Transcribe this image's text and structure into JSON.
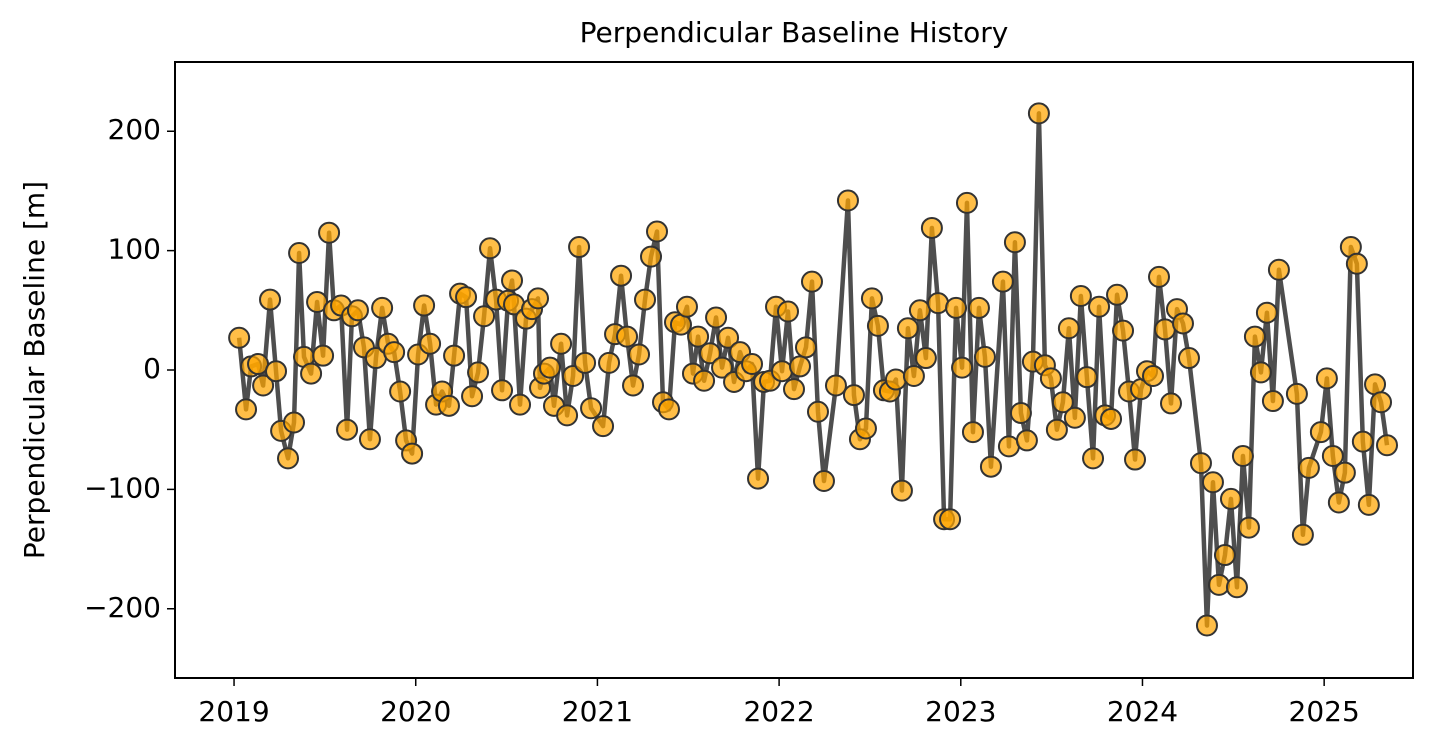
{
  "chart_data": {
    "type": "line",
    "title": "Perpendicular Baseline History",
    "y_label": "Perpendicular Baseline [m]",
    "x": [
      2019.028,
      2019.066,
      2019.094,
      2019.132,
      2019.16,
      2019.198,
      2019.231,
      2019.259,
      2019.297,
      2019.33,
      2019.358,
      2019.385,
      2019.424,
      2019.457,
      2019.49,
      2019.523,
      2019.55,
      2019.589,
      2019.622,
      2019.649,
      2019.682,
      2019.715,
      2019.748,
      2019.781,
      2019.815,
      2019.848,
      2019.881,
      2019.914,
      2019.947,
      2019.98,
      2020.013,
      2020.046,
      2020.079,
      2020.112,
      2020.145,
      2020.183,
      2020.211,
      2020.244,
      2020.277,
      2020.31,
      2020.343,
      2020.376,
      2020.409,
      2020.442,
      2020.475,
      2020.508,
      2020.53,
      2020.541,
      2020.574,
      2020.607,
      2020.64,
      2020.673,
      2020.684,
      2020.706,
      2020.739,
      2020.761,
      2020.8,
      2020.833,
      2020.866,
      2020.899,
      2020.932,
      2020.965,
      2021.031,
      2021.064,
      2021.097,
      2021.13,
      2021.163,
      2021.196,
      2021.229,
      2021.262,
      2021.295,
      2021.328,
      2021.361,
      2021.394,
      2021.427,
      2021.46,
      2021.493,
      2021.526,
      2021.554,
      2021.587,
      2021.62,
      2021.653,
      2021.686,
      2021.719,
      2021.752,
      2021.785,
      2021.818,
      2021.851,
      2021.884,
      2021.917,
      2021.95,
      2021.983,
      2022.016,
      2022.049,
      2022.082,
      2022.115,
      2022.148,
      2022.181,
      2022.214,
      2022.247,
      2022.313,
      2022.379,
      2022.412,
      2022.445,
      2022.478,
      2022.511,
      2022.544,
      2022.577,
      2022.61,
      2022.643,
      2022.676,
      2022.709,
      2022.742,
      2022.775,
      2022.808,
      2022.841,
      2022.875,
      2022.908,
      2022.941,
      2022.974,
      2023.007,
      2023.034,
      2023.067,
      2023.1,
      2023.133,
      2023.166,
      2023.232,
      2023.265,
      2023.298,
      2023.331,
      2023.364,
      2023.397,
      2023.43,
      2023.463,
      2023.496,
      2023.529,
      2023.562,
      2023.595,
      2023.628,
      2023.661,
      2023.694,
      2023.728,
      2023.761,
      2023.794,
      2023.827,
      2023.86,
      2023.893,
      2023.926,
      2023.959,
      2023.992,
      2024.025,
      2024.058,
      2024.091,
      2024.124,
      2024.157,
      2024.19,
      2024.223,
      2024.256,
      2024.322,
      2024.355,
      2024.388,
      2024.421,
      2024.454,
      2024.487,
      2024.52,
      2024.553,
      2024.586,
      2024.619,
      2024.652,
      2024.685,
      2024.718,
      2024.751,
      2024.85,
      2024.883,
      2024.916,
      2024.982,
      2025.015,
      2025.048,
      2025.081,
      2025.114,
      2025.147,
      2025.18,
      2025.213,
      2025.246,
      2025.28,
      2025.313,
      2025.346
    ],
    "series": [
      {
        "color": "#ffa500",
        "line_color": "#444444",
        "values": [
          27,
          -33,
          3,
          5,
          -13,
          59,
          -1,
          -51,
          -74,
          -44,
          98,
          11,
          -3,
          57,
          12,
          115,
          50,
          54,
          -50,
          45,
          50,
          19,
          -58,
          10,
          52,
          22,
          15,
          -18,
          -59,
          -70,
          13,
          54,
          22,
          -29,
          -18,
          -30,
          12,
          64,
          61,
          -22,
          -2,
          45,
          102,
          59,
          -17,
          58,
          75,
          55,
          -29,
          43,
          51,
          60,
          -15,
          -3,
          2,
          -30,
          22,
          -38,
          -5,
          103,
          6,
          -32,
          -47,
          6,
          30,
          79,
          28,
          -13,
          13,
          59,
          95,
          116,
          -27,
          -33,
          40,
          38,
          53,
          -3,
          28,
          -9,
          14,
          44,
          2,
          27,
          -10,
          15,
          -1,
          5,
          -91,
          -10,
          -9,
          53,
          -1,
          49,
          -16,
          3,
          19,
          74,
          -35,
          -93,
          -13,
          142,
          -21,
          -58,
          -49,
          60,
          37,
          -17,
          -18,
          -8,
          -101,
          35,
          -5,
          50,
          10,
          119,
          56,
          -125,
          -125,
          52,
          2,
          140,
          -52,
          52,
          11,
          -81,
          74,
          -64,
          107,
          -36,
          -59,
          7,
          215,
          4,
          -7,
          -50,
          -27,
          35,
          -40,
          62,
          -6,
          -74,
          53,
          -38,
          -41,
          63,
          33,
          -18,
          -75,
          -16,
          -1,
          -5,
          78,
          34,
          -28,
          51,
          39,
          10,
          -78,
          -214,
          -94,
          -180,
          -155,
          -108,
          -182,
          -72,
          -132,
          28,
          -2,
          48,
          -26,
          84,
          -20,
          -138,
          -82,
          -52,
          -7,
          -72,
          -111,
          -86,
          103,
          89,
          -60,
          -113,
          -12,
          -27,
          -63
        ]
      }
    ],
    "xlim": [
      2018.675,
      2025.489
    ],
    "xticks": [
      2019,
      2020,
      2021,
      2022,
      2023,
      2024,
      2025
    ],
    "ylim": [
      -258,
      258
    ],
    "yticks": [
      {
        "value": -200,
        "label": "−200"
      },
      {
        "value": -100,
        "label": "−100"
      },
      0,
      100,
      200
    ],
    "grid": false
  }
}
